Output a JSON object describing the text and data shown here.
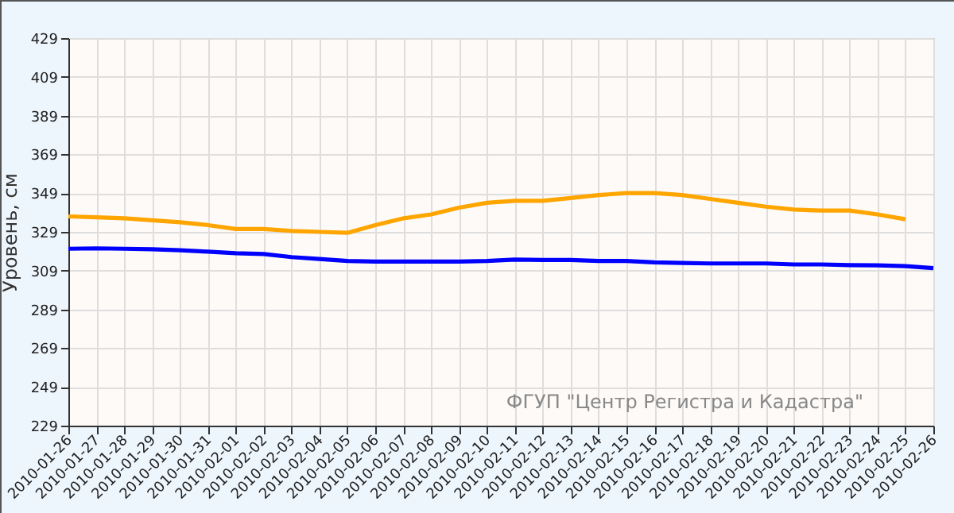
{
  "chart_data": {
    "type": "line",
    "ylabel": "Уровень, см",
    "annotations": [
      "ФГУП \"Центр Регистра и Кадастра\""
    ],
    "x": [
      "2010-01-26",
      "2010-01-27",
      "2010-01-28",
      "2010-01-29",
      "2010-01-30",
      "2010-01-31",
      "2010-02-01",
      "2010-02-02",
      "2010-02-03",
      "2010-02-04",
      "2010-02-05",
      "2010-02-06",
      "2010-02-07",
      "2010-02-08",
      "2010-02-09",
      "2010-02-10",
      "2010-02-11",
      "2010-02-12",
      "2010-02-13",
      "2010-02-14",
      "2010-02-15",
      "2010-02-16",
      "2010-02-17",
      "2010-02-18",
      "2010-02-19",
      "2010-02-20",
      "2010-02-21",
      "2010-02-22",
      "2010-02-23",
      "2010-02-24",
      "2010-02-25",
      "2010-02-26"
    ],
    "series": [
      {
        "color": "#ffa500",
        "values": [
          337,
          336.5,
          336,
          335,
          334,
          332.5,
          330.5,
          330.5,
          329.5,
          329,
          328.5,
          332.5,
          336,
          338,
          341.5,
          344,
          345,
          345,
          346.5,
          348,
          349,
          349,
          348,
          346,
          344,
          342,
          340.5,
          340,
          340,
          338,
          335.5,
          null
        ]
      },
      {
        "color": "#0000ff",
        "values": [
          320.3,
          320.5,
          320.3,
          320,
          319.5,
          318.8,
          318,
          317.6,
          316,
          315,
          314,
          313.7,
          313.7,
          313.7,
          313.7,
          314,
          314.7,
          314.5,
          314.5,
          314,
          314,
          313.3,
          313,
          312.7,
          312.7,
          312.7,
          312.2,
          312.2,
          311.8,
          311.7,
          311.3,
          310.3
        ]
      }
    ],
    "xlim": [
      "2010-01-26",
      "2010-02-26"
    ],
    "xticks": [
      "2010-01-26",
      "2010-01-27",
      "2010-01-28",
      "2010-01-29",
      "2010-01-30",
      "2010-01-31",
      "2010-02-01",
      "2010-02-02",
      "2010-02-03",
      "2010-02-04",
      "2010-02-05",
      "2010-02-06",
      "2010-02-07",
      "2010-02-08",
      "2010-02-09",
      "2010-02-10",
      "2010-02-11",
      "2010-02-12",
      "2010-02-13",
      "2010-02-14",
      "2010-02-15",
      "2010-02-16",
      "2010-02-17",
      "2010-02-18",
      "2010-02-19",
      "2010-02-20",
      "2010-02-21",
      "2010-02-22",
      "2010-02-23",
      "2010-02-24",
      "2010-02-25",
      "2010-02-26"
    ],
    "ylim": [
      229,
      429
    ],
    "yticks": [
      229,
      249,
      269,
      289,
      309,
      329,
      349,
      369,
      389,
      409,
      429
    ],
    "grid": true,
    "legend": false,
    "line_style": "solid"
  }
}
